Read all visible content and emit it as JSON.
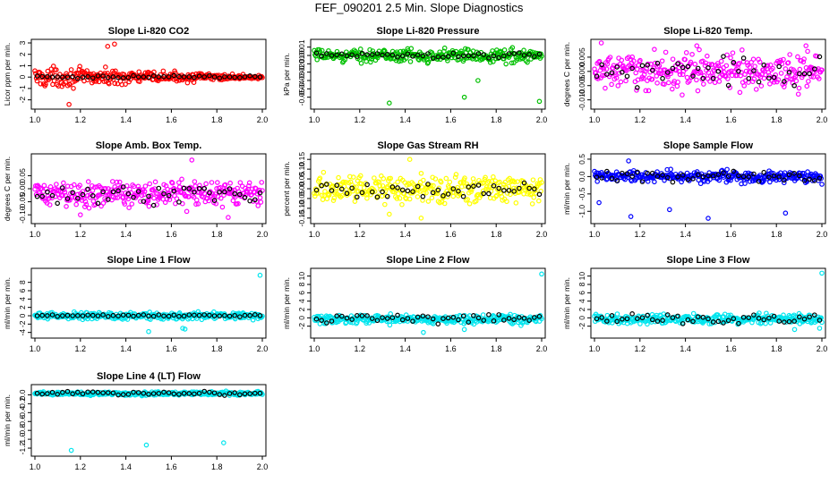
{
  "figure_title": "FEF_090201  2.5 Min. Slope Diagnostics",
  "chart_data": [
    {
      "type": "scatter",
      "title": "Slope Li-820 CO2",
      "ylabel": "Licor ppm per min.",
      "color": "#ff0000",
      "xlim": [
        1.0,
        2.0
      ],
      "ylim": [
        -2.5,
        3.0
      ],
      "xticks": [
        1.0,
        1.2,
        1.4,
        1.6,
        1.8,
        2.0
      ],
      "xtick_labels": [
        "1.0",
        "1.2",
        "1.4",
        "1.6",
        "1.8",
        "2.0"
      ],
      "yticks": [
        -2,
        -1,
        0,
        1,
        2,
        3
      ],
      "ytick_labels": [
        "-2",
        "-1",
        "0",
        "1",
        "2",
        "3"
      ],
      "noise": {
        "base": 0.0,
        "amp_start": 1.3,
        "amp_end": 0.2,
        "black_amp": 0.15
      },
      "outliers": [
        [
          1.15,
          -2.4
        ],
        [
          1.32,
          2.7
        ],
        [
          1.35,
          2.9
        ]
      ]
    },
    {
      "type": "scatter",
      "title": "Slope Li-820 Pressure",
      "ylabel": "kPa per min.",
      "color": "#00c000",
      "xlim": [
        1.0,
        2.0
      ],
      "ylim": [
        -0.06,
        0.015
      ],
      "xticks": [
        1.0,
        1.2,
        1.4,
        1.6,
        1.8,
        2.0
      ],
      "xtick_labels": [
        "1.0",
        "1.2",
        "1.4",
        "1.6",
        "1.8",
        "2.0"
      ],
      "yticks": [
        -0.05,
        -0.04,
        -0.03,
        -0.02,
        -0.01,
        0.0,
        0.01
      ],
      "ytick_labels": [
        "-0.05",
        "-0.04",
        "-0.03",
        "-0.02",
        "-0.01",
        "0.00",
        "0.01"
      ],
      "noise": {
        "base": 0.0,
        "amp_start": 0.01,
        "amp_end": 0.012,
        "black_amp": 0.004
      },
      "outliers": [
        [
          1.33,
          -0.057
        ],
        [
          1.66,
          -0.05
        ],
        [
          1.99,
          -0.055
        ],
        [
          1.72,
          -0.03
        ]
      ]
    },
    {
      "type": "scatter",
      "title": "Slope Li-820 Temp.",
      "ylabel": "degrees C per min.",
      "color": "#ff00ff",
      "xlim": [
        1.0,
        2.0
      ],
      "ylim": [
        -0.012,
        0.01
      ],
      "xticks": [
        1.0,
        1.2,
        1.4,
        1.6,
        1.8,
        2.0
      ],
      "xtick_labels": [
        "1.0",
        "1.2",
        "1.4",
        "1.6",
        "1.8",
        "2.0"
      ],
      "yticks": [
        -0.01,
        -0.005,
        0.0,
        0.005
      ],
      "ytick_labels": [
        "-0.010",
        "-0.005",
        "0.000",
        "0.005"
      ],
      "noise": {
        "base": 0.0,
        "amp_start": 0.009,
        "amp_end": 0.009,
        "black_amp": 0.007
      },
      "outliers": [
        [
          1.03,
          0.01
        ],
        [
          1.45,
          0.009
        ],
        [
          1.93,
          0.009
        ]
      ]
    },
    {
      "type": "scatter",
      "title": "Slope Amb. Box Temp.",
      "ylabel": "degrees C per min.",
      "color": "#ff00ff",
      "xlim": [
        1.0,
        2.0
      ],
      "ylim": [
        -0.12,
        0.12
      ],
      "xticks": [
        1.0,
        1.2,
        1.4,
        1.6,
        1.8,
        2.0
      ],
      "xtick_labels": [
        "1.0",
        "1.2",
        "1.4",
        "1.6",
        "1.8",
        "2.0"
      ],
      "yticks": [
        -0.1,
        -0.05,
        0.0,
        0.05
      ],
      "ytick_labels": [
        "-0.10",
        "-0.05",
        "0.00",
        "0.05"
      ],
      "noise": {
        "base": -0.02,
        "amp_start": 0.07,
        "amp_end": 0.07,
        "black_amp": 0.05
      },
      "outliers": [
        [
          1.69,
          0.11
        ],
        [
          1.85,
          -0.11
        ],
        [
          1.2,
          -0.1
        ]
      ]
    },
    {
      "type": "scatter",
      "title": "Slope Gas Stream RH",
      "ylabel": "percent per min.",
      "color": "#ffff00",
      "xlim": [
        1.0,
        2.0
      ],
      "ylim": [
        -0.16,
        0.16
      ],
      "xticks": [
        1.0,
        1.2,
        1.4,
        1.6,
        1.8,
        2.0
      ],
      "xtick_labels": [
        "1.0",
        "1.2",
        "1.4",
        "1.6",
        "1.8",
        "2.0"
      ],
      "yticks": [
        -0.15,
        -0.1,
        -0.05,
        0.0,
        0.05,
        0.1,
        0.15
      ],
      "ytick_labels": [
        "-0.15",
        "-0.10",
        "-0.05",
        "0.00",
        "0.05",
        "0.10",
        "0.15"
      ],
      "noise": {
        "base": 0.0,
        "amp_start": 0.1,
        "amp_end": 0.1,
        "black_amp": 0.05
      },
      "outliers": [
        [
          1.42,
          0.15
        ],
        [
          1.47,
          -0.15
        ],
        [
          1.33,
          -0.13
        ]
      ]
    },
    {
      "type": "scatter",
      "title": "Slope Sample Flow",
      "ylabel": "ml/min per min.",
      "color": "#0000ff",
      "xlim": [
        1.0,
        2.0
      ],
      "ylim": [
        -1.25,
        0.55
      ],
      "xticks": [
        1.0,
        1.2,
        1.4,
        1.6,
        1.8,
        2.0
      ],
      "xtick_labels": [
        "1.0",
        "1.2",
        "1.4",
        "1.6",
        "1.8",
        "2.0"
      ],
      "yticks": [
        -1.0,
        -0.5,
        0.0,
        0.5
      ],
      "ytick_labels": [
        "-1.0",
        "-0.5",
        "0.0",
        "0.5"
      ],
      "noise": {
        "base": 0.0,
        "amp_start": 0.25,
        "amp_end": 0.25,
        "black_amp": 0.2
      },
      "outliers": [
        [
          1.16,
          -1.15
        ],
        [
          1.33,
          -0.95
        ],
        [
          1.5,
          -1.2
        ],
        [
          1.84,
          -1.05
        ],
        [
          1.15,
          0.45
        ],
        [
          1.02,
          -0.75
        ]
      ]
    },
    {
      "type": "scatter",
      "title": "Slope Line 1 Flow",
      "ylabel": "ml/min per min.",
      "color": "#00e5ee",
      "xlim": [
        1.0,
        2.0
      ],
      "ylim": [
        -4.5,
        10.5
      ],
      "xticks": [
        1.0,
        1.2,
        1.4,
        1.6,
        1.8,
        2.0
      ],
      "xtick_labels": [
        "1.0",
        "1.2",
        "1.4",
        "1.6",
        "1.8",
        "2.0"
      ],
      "yticks": [
        -4,
        -2,
        0,
        2,
        4,
        6,
        8
      ],
      "ytick_labels": [
        "-4",
        "-2",
        "0",
        "2",
        "4",
        "6",
        "8"
      ],
      "noise": {
        "base": 0.0,
        "amp_start": 1.2,
        "amp_end": 1.2,
        "black_amp": 0.3
      },
      "outliers": [
        [
          1.99,
          9.7
        ],
        [
          1.65,
          -3.0
        ],
        [
          1.5,
          -3.8
        ],
        [
          1.66,
          -3.2
        ]
      ]
    },
    {
      "type": "scatter",
      "title": "Slope Line 2 Flow",
      "ylabel": "ml/min per min.",
      "color": "#00e5ee",
      "xlim": [
        1.0,
        2.0
      ],
      "ylim": [
        -4.0,
        11.0
      ],
      "xticks": [
        1.0,
        1.2,
        1.4,
        1.6,
        1.8,
        2.0
      ],
      "xtick_labels": [
        "1.0",
        "1.2",
        "1.4",
        "1.6",
        "1.8",
        "2.0"
      ],
      "yticks": [
        -2,
        0,
        2,
        4,
        6,
        8,
        10
      ],
      "ytick_labels": [
        "-2",
        "0",
        "2",
        "4",
        "6",
        "8",
        "10"
      ],
      "noise": {
        "base": -0.3,
        "amp_start": 1.6,
        "amp_end": 1.6,
        "black_amp": 1.4
      },
      "outliers": [
        [
          2.0,
          10.5
        ],
        [
          1.48,
          -3.5
        ],
        [
          1.66,
          -2.8
        ]
      ]
    },
    {
      "type": "scatter",
      "title": "Slope Line 3 Flow",
      "ylabel": "ml/min per min.",
      "color": "#00e5ee",
      "xlim": [
        1.0,
        2.0
      ],
      "ylim": [
        -4.0,
        11.0
      ],
      "xticks": [
        1.0,
        1.2,
        1.4,
        1.6,
        1.8,
        2.0
      ],
      "xtick_labels": [
        "1.0",
        "1.2",
        "1.4",
        "1.6",
        "1.8",
        "2.0"
      ],
      "yticks": [
        -2,
        0,
        2,
        4,
        6,
        8,
        10
      ],
      "ytick_labels": [
        "-2",
        "0",
        "2",
        "4",
        "6",
        "8",
        "10"
      ],
      "noise": {
        "base": -0.3,
        "amp_start": 1.6,
        "amp_end": 1.6,
        "black_amp": 1.4
      },
      "outliers": [
        [
          2.0,
          10.7
        ],
        [
          1.99,
          -2.5
        ],
        [
          1.88,
          -2.8
        ]
      ]
    },
    {
      "type": "scatter",
      "title": "Slope Line 4 (LT) Flow",
      "ylabel": "ml/min per min.",
      "color": "#00e5ee",
      "xlim": [
        1.0,
        2.0
      ],
      "ylim": [
        -1.3,
        0.15
      ],
      "xticks": [
        1.0,
        1.2,
        1.4,
        1.6,
        1.8,
        2.0
      ],
      "xtick_labels": [
        "1.0",
        "1.2",
        "1.4",
        "1.6",
        "1.8",
        "2.0"
      ],
      "yticks": [
        -1.2,
        -1.0,
        -0.8,
        -0.6,
        -0.4,
        -0.2,
        0.0
      ],
      "ytick_labels": [
        "-1.2",
        "-1.0",
        "-0.8",
        "-0.6",
        "-0.4",
        "-0.2",
        "0.0"
      ],
      "noise": {
        "base": 0.03,
        "amp_start": 0.06,
        "amp_end": 0.06,
        "black_amp": 0.05
      },
      "outliers": [
        [
          1.16,
          -1.25
        ],
        [
          1.49,
          -1.13
        ],
        [
          1.83,
          -1.08
        ]
      ]
    }
  ]
}
